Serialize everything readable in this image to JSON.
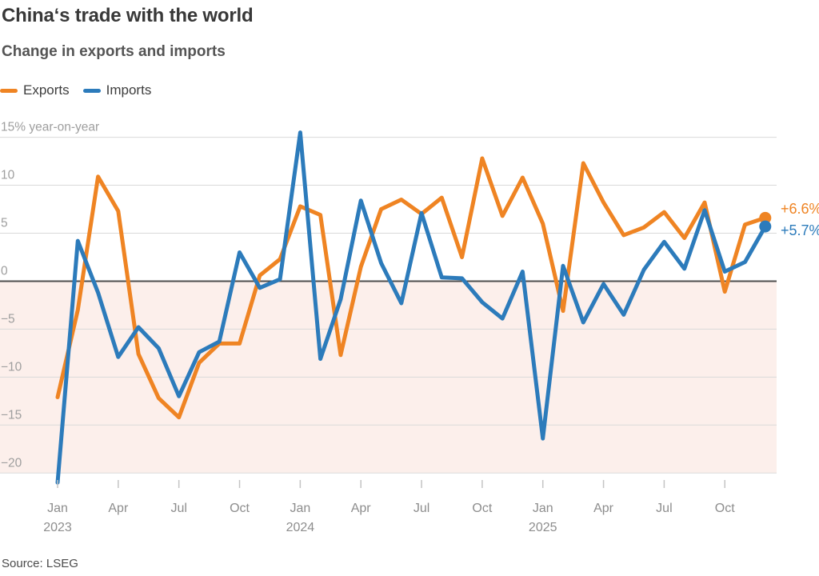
{
  "header": {
    "title": "China‘s trade with the world",
    "subtitle": "Change in exports and imports"
  },
  "footer": {
    "source": "Source: LSEG"
  },
  "chart_data": {
    "type": "line",
    "title": "China‘s trade with the world",
    "subtitle": "Change in exports and imports",
    "unit_note": "% year-on-year",
    "grid": "horizontal",
    "legend_position": "top-left",
    "ylim": [
      -21.5,
      15.8
    ],
    "x_labels": [
      "Jan 2023",
      "Feb 2023",
      "Mar 2023",
      "Apr 2023",
      "May 2023",
      "Jun 2023",
      "Jul 2023",
      "Aug 2023",
      "Sep 2023",
      "Oct 2023",
      "Nov 2023",
      "Dec 2023",
      "Jan 2024",
      "Feb 2024",
      "Mar 2024",
      "Apr 2024",
      "May 2024",
      "Jun 2024",
      "Jul 2024",
      "Aug 2024",
      "Sep 2024",
      "Oct 2024",
      "Nov 2024",
      "Dec 2024",
      "Jan 2025",
      "Feb 2025",
      "Mar 2025",
      "Apr 2025",
      "May 2025",
      "Jun 2025",
      "Jul 2025",
      "Aug 2025",
      "Sep 2025",
      "Oct 2025",
      "Nov 2025",
      "Dec 2025"
    ],
    "series": [
      {
        "name": "Exports",
        "color": "#EF8423",
        "end_label": "+6.6%",
        "values": [
          -12.1,
          -3.0,
          10.9,
          7.3,
          -7.6,
          -12.2,
          -14.2,
          -8.5,
          -6.5,
          -6.5,
          0.6,
          2.3,
          7.8,
          6.9,
          -7.7,
          1.5,
          7.5,
          8.5,
          7.0,
          8.7,
          2.5,
          12.8,
          6.8,
          10.8,
          6.0,
          -3.1,
          12.3,
          8.2,
          4.8,
          5.6,
          7.2,
          4.5,
          8.2,
          -1.1,
          5.9,
          6.6
        ]
      },
      {
        "name": "Imports",
        "color": "#2C7BBB",
        "end_label": "+5.7%",
        "values": [
          -21.0,
          4.2,
          -1.2,
          -7.9,
          -4.8,
          -7.0,
          -12.0,
          -7.4,
          -6.3,
          3.0,
          -0.7,
          0.2,
          15.5,
          -8.1,
          -1.9,
          8.4,
          1.9,
          -2.3,
          7.1,
          0.4,
          0.3,
          -2.2,
          -3.9,
          1.0,
          -16.4,
          1.6,
          -4.3,
          -0.3,
          -3.5,
          1.2,
          4.1,
          1.3,
          7.4,
          1.0,
          2.0,
          5.7
        ]
      }
    ],
    "y_gridlines": [
      {
        "value": 15,
        "label": "15% year-on-year"
      },
      {
        "value": 10,
        "label": "10"
      },
      {
        "value": 5,
        "label": "5"
      },
      {
        "value": 0,
        "label": "0"
      },
      {
        "value": -5,
        "label": "−5"
      },
      {
        "value": -10,
        "label": "−10"
      },
      {
        "value": -15,
        "label": "−15"
      },
      {
        "value": -20,
        "label": "−20"
      }
    ],
    "x_ticks": [
      {
        "index": 0,
        "label": "Jan",
        "year": "2023"
      },
      {
        "index": 3,
        "label": "Apr"
      },
      {
        "index": 6,
        "label": "Jul"
      },
      {
        "index": 9,
        "label": "Oct"
      },
      {
        "index": 12,
        "label": "Jan",
        "year": "2024"
      },
      {
        "index": 15,
        "label": "Apr"
      },
      {
        "index": 18,
        "label": "Jul"
      },
      {
        "index": 21,
        "label": "Oct"
      },
      {
        "index": 24,
        "label": "Jan",
        "year": "2025"
      },
      {
        "index": 27,
        "label": "Apr"
      },
      {
        "index": 30,
        "label": "Jul"
      },
      {
        "index": 33,
        "label": "Oct"
      }
    ],
    "colors": {
      "negative_band": "#FCEFEB",
      "gridline": "#DADADA",
      "zero_line": "#4D4D4D",
      "tick_mark": "#C4C4C4"
    }
  }
}
